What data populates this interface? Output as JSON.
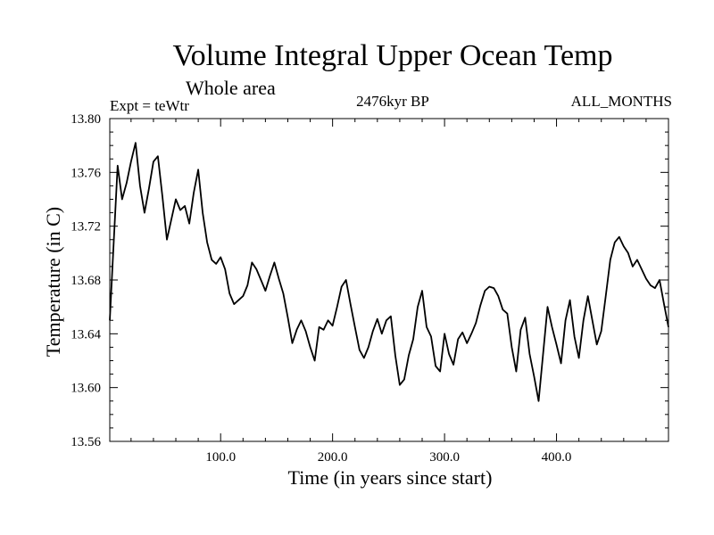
{
  "chart_data": {
    "type": "line",
    "title": "Volume Integral Upper Ocean Temp",
    "subtitle": "Whole area",
    "experiment": "Expt = teWtr",
    "period": "2476kyr BP",
    "months": "ALL_MONTHS",
    "xlabel": "Time (in years since start)",
    "ylabel": "Temperature (in C)",
    "xlim": [
      1,
      500
    ],
    "ylim": [
      13.56,
      13.8
    ],
    "x_ticks": [
      100,
      200,
      300,
      400
    ],
    "x_tick_labels": [
      "100.0",
      "200.0",
      "300.0",
      "400.0"
    ],
    "y_ticks": [
      13.56,
      13.6,
      13.64,
      13.68,
      13.72,
      13.76,
      13.8
    ],
    "y_tick_labels": [
      "13.56",
      "13.60",
      "13.64",
      "13.68",
      "13.72",
      "13.76",
      "13.80"
    ],
    "series": [
      {
        "name": "Temperature",
        "x": [
          1,
          4,
          8,
          12,
          16,
          20,
          24,
          28,
          32,
          36,
          40,
          44,
          48,
          52,
          56,
          60,
          64,
          68,
          72,
          76,
          80,
          84,
          88,
          92,
          96,
          100,
          104,
          108,
          112,
          116,
          120,
          124,
          128,
          132,
          136,
          140,
          144,
          148,
          152,
          156,
          160,
          164,
          168,
          172,
          176,
          180,
          184,
          188,
          192,
          196,
          200,
          204,
          208,
          212,
          216,
          220,
          224,
          228,
          232,
          236,
          240,
          244,
          248,
          252,
          256,
          260,
          264,
          268,
          272,
          276,
          280,
          284,
          288,
          292,
          296,
          300,
          304,
          308,
          312,
          316,
          320,
          324,
          328,
          332,
          336,
          340,
          344,
          348,
          352,
          356,
          360,
          364,
          368,
          372,
          376,
          380,
          384,
          388,
          392,
          396,
          400,
          404,
          408,
          412,
          416,
          420,
          424,
          428,
          432,
          436,
          440,
          444,
          448,
          452,
          456,
          460,
          464,
          468,
          472,
          476,
          480,
          484,
          488,
          492,
          496,
          500
        ],
        "values": [
          13.65,
          13.7,
          13.765,
          13.74,
          13.752,
          13.768,
          13.782,
          13.75,
          13.73,
          13.748,
          13.768,
          13.772,
          13.742,
          13.71,
          13.725,
          13.74,
          13.732,
          13.735,
          13.722,
          13.745,
          13.762,
          13.73,
          13.708,
          13.695,
          13.692,
          13.697,
          13.688,
          13.67,
          13.662,
          13.665,
          13.668,
          13.676,
          13.693,
          13.688,
          13.68,
          13.672,
          13.683,
          13.693,
          13.681,
          13.67,
          13.652,
          13.633,
          13.643,
          13.65,
          13.642,
          13.63,
          13.62,
          13.645,
          13.643,
          13.65,
          13.646,
          13.66,
          13.675,
          13.68,
          13.662,
          13.645,
          13.628,
          13.622,
          13.63,
          13.642,
          13.651,
          13.64,
          13.65,
          13.653,
          13.624,
          13.602,
          13.606,
          13.624,
          13.636,
          13.66,
          13.672,
          13.645,
          13.638,
          13.616,
          13.612,
          13.64,
          13.625,
          13.617,
          13.636,
          13.641,
          13.633,
          13.64,
          13.648,
          13.661,
          13.672,
          13.675,
          13.674,
          13.668,
          13.658,
          13.655,
          13.63,
          13.612,
          13.643,
          13.652,
          13.625,
          13.608,
          13.59,
          13.625,
          13.66,
          13.645,
          13.632,
          13.618,
          13.65,
          13.665,
          13.638,
          13.622,
          13.65,
          13.668,
          13.65,
          13.632,
          13.642,
          13.668,
          13.695,
          13.708,
          13.712,
          13.705,
          13.7,
          13.69,
          13.695,
          13.688,
          13.681,
          13.676,
          13.674,
          13.68,
          13.662,
          13.645
        ]
      }
    ]
  }
}
